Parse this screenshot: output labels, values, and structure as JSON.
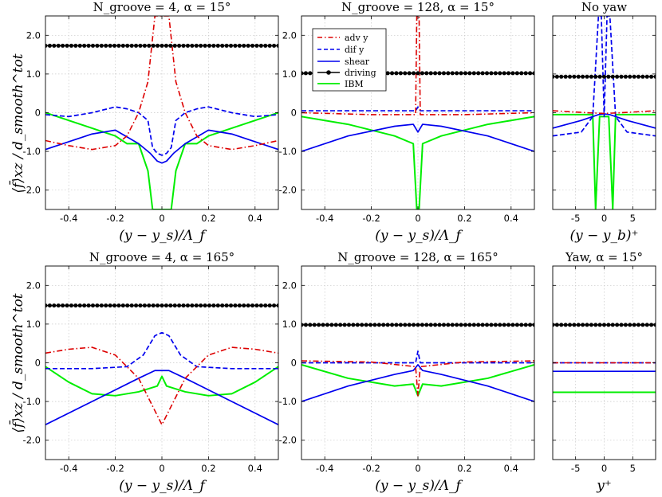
{
  "figure": {
    "ylabel": "⟨f̄⟩xz / d_smooth^tot",
    "legend": [
      "adv y",
      "dif y",
      "shear",
      "driving",
      "IBM"
    ],
    "colors": {
      "adv": "#dd0000",
      "dif": "#0000ee",
      "shear": "#0000ee",
      "driving": "#000000",
      "ibm": "#00ee00"
    }
  },
  "chart_data": [
    {
      "id": "p1",
      "type": "line",
      "title": "N_groove = 4, α = 15°",
      "xlabel": "(y − y_s)/Λ_f",
      "xlim": [
        -0.5,
        0.5
      ],
      "ylim": [
        -2.5,
        2.5
      ],
      "xticks": [
        -0.4,
        -0.2,
        0,
        0.2,
        0.4
      ],
      "xtick_labels": [
        "-0.4",
        "-0.2",
        "0",
        "0.2",
        "0.4"
      ],
      "yticks": [
        -2,
        -1,
        0,
        1,
        2
      ],
      "ytick_labels": [
        "-2.0",
        "-1.0",
        "0",
        "1.0",
        "2.0"
      ],
      "series": {
        "adv": {
          "name": "adv y",
          "x": [
            -0.5,
            -0.4,
            -0.3,
            -0.2,
            -0.15,
            -0.1,
            -0.06,
            -0.03,
            0.03,
            0.06,
            0.1,
            0.15,
            0.2,
            0.3,
            0.4,
            0.5
          ],
          "y": [
            -0.72,
            -0.85,
            -0.95,
            -0.85,
            -0.6,
            0.0,
            0.8,
            2.5,
            2.5,
            0.8,
            0.0,
            -0.6,
            -0.85,
            -0.95,
            -0.85,
            -0.72
          ]
        },
        "dif": {
          "name": "dif y",
          "x": [
            -0.5,
            -0.4,
            -0.3,
            -0.2,
            -0.15,
            -0.1,
            -0.06,
            -0.04,
            -0.02,
            0,
            0.02,
            0.04,
            0.06,
            0.1,
            0.15,
            0.2,
            0.3,
            0.4,
            0.5
          ],
          "y": [
            -0.05,
            -0.1,
            0.0,
            0.15,
            0.1,
            0.0,
            -0.2,
            -0.9,
            -1.05,
            -1.1,
            -1.05,
            -0.9,
            -0.2,
            0.0,
            0.1,
            0.15,
            0.0,
            -0.1,
            -0.05
          ]
        },
        "shear": {
          "name": "shear",
          "x": [
            -0.5,
            -0.4,
            -0.3,
            -0.2,
            -0.1,
            -0.05,
            -0.02,
            0,
            0.02,
            0.05,
            0.1,
            0.2,
            0.3,
            0.4,
            0.5
          ],
          "y": [
            -0.95,
            -0.75,
            -0.55,
            -0.45,
            -0.8,
            -1.05,
            -1.25,
            -1.3,
            -1.25,
            -1.05,
            -0.8,
            -0.45,
            -0.55,
            -0.75,
            -0.95
          ]
        },
        "driving": {
          "name": "driving",
          "x": [
            -0.5,
            0.5
          ],
          "y": [
            1.73,
            1.73
          ]
        },
        "ibm": {
          "name": "IBM",
          "x": [
            -0.5,
            -0.4,
            -0.3,
            -0.25,
            -0.2,
            -0.15,
            -0.1,
            -0.06,
            -0.04,
            -0.02,
            0.02,
            0.04,
            0.06,
            0.1,
            0.15,
            0.2,
            0.25,
            0.3,
            0.4,
            0.5
          ],
          "y": [
            0.0,
            -0.2,
            -0.4,
            -0.5,
            -0.6,
            -0.8,
            -0.8,
            -1.5,
            -2.5,
            -2.5,
            -2.5,
            -2.5,
            -1.5,
            -0.8,
            -0.8,
            -0.6,
            -0.5,
            -0.4,
            -0.2,
            0.0
          ]
        }
      }
    },
    {
      "id": "p2",
      "type": "line",
      "title": "N_groove = 128, α = 15°",
      "xlabel": "(y − y_s)/Λ_f",
      "xlim": [
        -0.5,
        0.5
      ],
      "ylim": [
        -2.5,
        2.5
      ],
      "xticks": [
        -0.4,
        -0.2,
        0,
        0.2,
        0.4
      ],
      "xtick_labels": [
        "-0.4",
        "-0.2",
        "0",
        "0.2",
        "0.4"
      ],
      "yticks": [
        -2,
        -1,
        0,
        1,
        2
      ],
      "ytick_labels": [
        "-2.0",
        "-1.0",
        "0",
        "1.0",
        "2.0"
      ],
      "legend_position": "top-left",
      "series": {
        "adv": {
          "name": "adv y",
          "x": [
            -0.5,
            -0.2,
            -0.01,
            -0.005,
            0.005,
            0.01,
            0.2,
            0.5
          ],
          "y": [
            0.0,
            -0.05,
            -0.05,
            2.5,
            2.5,
            -0.05,
            -0.05,
            0.0
          ]
        },
        "dif": {
          "name": "dif y",
          "x": [
            -0.5,
            -0.2,
            -0.01,
            0,
            0.01,
            0.2,
            0.5
          ],
          "y": [
            0.05,
            0.05,
            0.05,
            0.15,
            0.05,
            0.05,
            0.05
          ]
        },
        "shear": {
          "name": "shear",
          "x": [
            -0.5,
            -0.3,
            -0.1,
            -0.02,
            0,
            0.02,
            0.1,
            0.3,
            0.5
          ],
          "y": [
            -1.0,
            -0.6,
            -0.35,
            -0.3,
            -0.5,
            -0.3,
            -0.35,
            -0.6,
            -1.0
          ]
        },
        "driving": {
          "name": "driving",
          "x": [
            -0.5,
            0.5
          ],
          "y": [
            1.02,
            1.02
          ]
        },
        "ibm": {
          "name": "IBM",
          "x": [
            -0.5,
            -0.3,
            -0.1,
            -0.02,
            -0.005,
            0.005,
            0.02,
            0.1,
            0.3,
            0.5
          ],
          "y": [
            -0.1,
            -0.3,
            -0.6,
            -0.8,
            -2.5,
            -2.5,
            -0.8,
            -0.6,
            -0.3,
            -0.1
          ]
        }
      }
    },
    {
      "id": "p3",
      "type": "line",
      "title": "No yaw",
      "xlabel": "(y − y_b)⁺",
      "xlim": [
        -9,
        9
      ],
      "ylim": [
        -2.5,
        2.5
      ],
      "xticks": [
        -5,
        0,
        5
      ],
      "xtick_labels": [
        "-5",
        "0",
        "5"
      ],
      "yticks": [
        -2,
        -1,
        0,
        1,
        2
      ],
      "ytick_labels": [
        "",
        "",
        "",
        "",
        ""
      ],
      "series": {
        "adv": {
          "name": "adv y",
          "x": [
            -9,
            -3,
            0,
            3,
            9
          ],
          "y": [
            0.05,
            0.0,
            -0.02,
            0.0,
            0.05
          ]
        },
        "dif": {
          "name": "dif y",
          "x": [
            -9,
            -4,
            -2,
            -1,
            -0.5,
            0,
            0.5,
            1,
            2,
            4,
            9
          ],
          "y": [
            -0.6,
            -0.5,
            -0.1,
            2.5,
            2.5,
            -0.1,
            2.5,
            2.5,
            -0.1,
            -0.5,
            -0.6
          ]
        },
        "shear": {
          "name": "shear",
          "x": [
            -9,
            -4,
            -1,
            0,
            1,
            4,
            9
          ],
          "y": [
            -0.4,
            -0.2,
            -0.05,
            -0.03,
            -0.05,
            -0.2,
            -0.4
          ]
        },
        "driving": {
          "name": "driving",
          "x": [
            -9,
            9
          ],
          "y": [
            0.93,
            0.93
          ]
        },
        "ibm": {
          "name": "IBM",
          "x": [
            -9,
            -2,
            -1.5,
            -0.8,
            0.8,
            1.5,
            2,
            9
          ],
          "y": [
            -0.05,
            -0.05,
            -2.5,
            -0.1,
            -0.1,
            -2.5,
            -0.05,
            -0.05
          ]
        }
      }
    },
    {
      "id": "p4",
      "type": "line",
      "title": "N_groove = 4, α = 165°",
      "xlabel": "(y − y_s)/Λ_f",
      "xlim": [
        -0.5,
        0.5
      ],
      "ylim": [
        -2.5,
        2.5
      ],
      "xticks": [
        -0.4,
        -0.2,
        0,
        0.2,
        0.4
      ],
      "xtick_labels": [
        "-0.4",
        "-0.2",
        "0",
        "0.2",
        "0.4"
      ],
      "yticks": [
        -2,
        -1,
        0,
        1,
        2
      ],
      "ytick_labels": [
        "-2.0",
        "-1.0",
        "0",
        "1.0",
        "2.0"
      ],
      "series": {
        "adv": {
          "name": "adv y",
          "x": [
            -0.5,
            -0.4,
            -0.3,
            -0.2,
            -0.1,
            -0.05,
            0,
            0.05,
            0.1,
            0.2,
            0.3,
            0.4,
            0.5
          ],
          "y": [
            0.25,
            0.35,
            0.4,
            0.2,
            -0.4,
            -1.0,
            -1.6,
            -1.0,
            -0.4,
            0.2,
            0.4,
            0.35,
            0.25
          ]
        },
        "dif": {
          "name": "dif y",
          "x": [
            -0.5,
            -0.3,
            -0.15,
            -0.08,
            -0.03,
            0,
            0.03,
            0.08,
            0.15,
            0.3,
            0.5
          ],
          "y": [
            -0.15,
            -0.15,
            -0.1,
            0.2,
            0.7,
            0.78,
            0.7,
            0.2,
            -0.1,
            -0.15,
            -0.15
          ]
        },
        "shear": {
          "name": "shear",
          "x": [
            -0.5,
            -0.3,
            -0.1,
            -0.03,
            0.03,
            0.1,
            0.3,
            0.5
          ],
          "y": [
            -1.6,
            -1.0,
            -0.4,
            -0.2,
            -0.2,
            -0.4,
            -1.0,
            -1.6
          ]
        },
        "driving": {
          "name": "driving",
          "x": [
            -0.5,
            0.5
          ],
          "y": [
            1.48,
            1.48
          ]
        },
        "ibm": {
          "name": "IBM",
          "x": [
            -0.5,
            -0.4,
            -0.3,
            -0.2,
            -0.1,
            -0.02,
            0,
            0.02,
            0.1,
            0.2,
            0.3,
            0.4,
            0.5
          ],
          "y": [
            -0.1,
            -0.5,
            -0.8,
            -0.85,
            -0.75,
            -0.6,
            -0.35,
            -0.6,
            -0.75,
            -0.85,
            -0.8,
            -0.5,
            -0.1
          ]
        }
      }
    },
    {
      "id": "p5",
      "type": "line",
      "title": "N_groove = 128, α = 165°",
      "xlabel": "(y − y_s)/Λ_f",
      "xlim": [
        -0.5,
        0.5
      ],
      "ylim": [
        -2.5,
        2.5
      ],
      "xticks": [
        -0.4,
        -0.2,
        0,
        0.2,
        0.4
      ],
      "xtick_labels": [
        "-0.4",
        "-0.2",
        "0",
        "0.2",
        "0.4"
      ],
      "yticks": [
        -2,
        -1,
        0,
        1,
        2
      ],
      "ytick_labels": [
        "-2.0",
        "-1.0",
        "0",
        "1.0",
        "2.0"
      ],
      "series": {
        "adv": {
          "name": "adv y",
          "x": [
            -0.5,
            -0.2,
            -0.01,
            0,
            0.01,
            0.2,
            0.5
          ],
          "y": [
            0.05,
            0.02,
            -0.1,
            -0.85,
            -0.1,
            0.02,
            0.05
          ]
        },
        "dif": {
          "name": "dif y",
          "x": [
            -0.5,
            -0.2,
            -0.01,
            0,
            0.01,
            0.2,
            0.5
          ],
          "y": [
            0.0,
            0.0,
            0.0,
            0.3,
            0.0,
            0.0,
            0.0
          ]
        },
        "shear": {
          "name": "shear",
          "x": [
            -0.5,
            -0.3,
            -0.1,
            -0.02,
            0,
            0.02,
            0.1,
            0.3,
            0.5
          ],
          "y": [
            -1.0,
            -0.6,
            -0.3,
            -0.2,
            -0.05,
            -0.2,
            -0.3,
            -0.6,
            -1.0
          ]
        },
        "driving": {
          "name": "driving",
          "x": [
            -0.5,
            0.5
          ],
          "y": [
            0.98,
            0.98
          ]
        },
        "ibm": {
          "name": "IBM",
          "x": [
            -0.5,
            -0.3,
            -0.1,
            -0.02,
            0,
            0.02,
            0.1,
            0.3,
            0.5
          ],
          "y": [
            -0.05,
            -0.4,
            -0.6,
            -0.55,
            -0.85,
            -0.55,
            -0.6,
            -0.4,
            -0.05
          ]
        }
      }
    },
    {
      "id": "p6",
      "type": "line",
      "title": "Yaw, α = 15°",
      "xlabel": "y⁺",
      "xlim": [
        -9,
        9
      ],
      "ylim": [
        -2.5,
        2.5
      ],
      "xticks": [
        -5,
        0,
        5
      ],
      "xtick_labels": [
        "-5",
        "0",
        "5"
      ],
      "yticks": [
        -2,
        -1,
        0,
        1,
        2
      ],
      "ytick_labels": [
        "",
        "",
        "",
        "",
        ""
      ],
      "series": {
        "adv": {
          "name": "adv y",
          "x": [
            -9,
            9
          ],
          "y": [
            0.0,
            0.0
          ]
        },
        "dif": {
          "name": "dif y",
          "x": [
            -9,
            9
          ],
          "y": [
            0.0,
            0.0
          ]
        },
        "shear": {
          "name": "shear",
          "x": [
            -9,
            9
          ],
          "y": [
            -0.22,
            -0.22
          ]
        },
        "driving": {
          "name": "driving",
          "x": [
            -9,
            9
          ],
          "y": [
            0.98,
            0.98
          ]
        },
        "ibm": {
          "name": "IBM",
          "x": [
            -9,
            9
          ],
          "y": [
            -0.76,
            -0.76
          ]
        }
      }
    }
  ]
}
